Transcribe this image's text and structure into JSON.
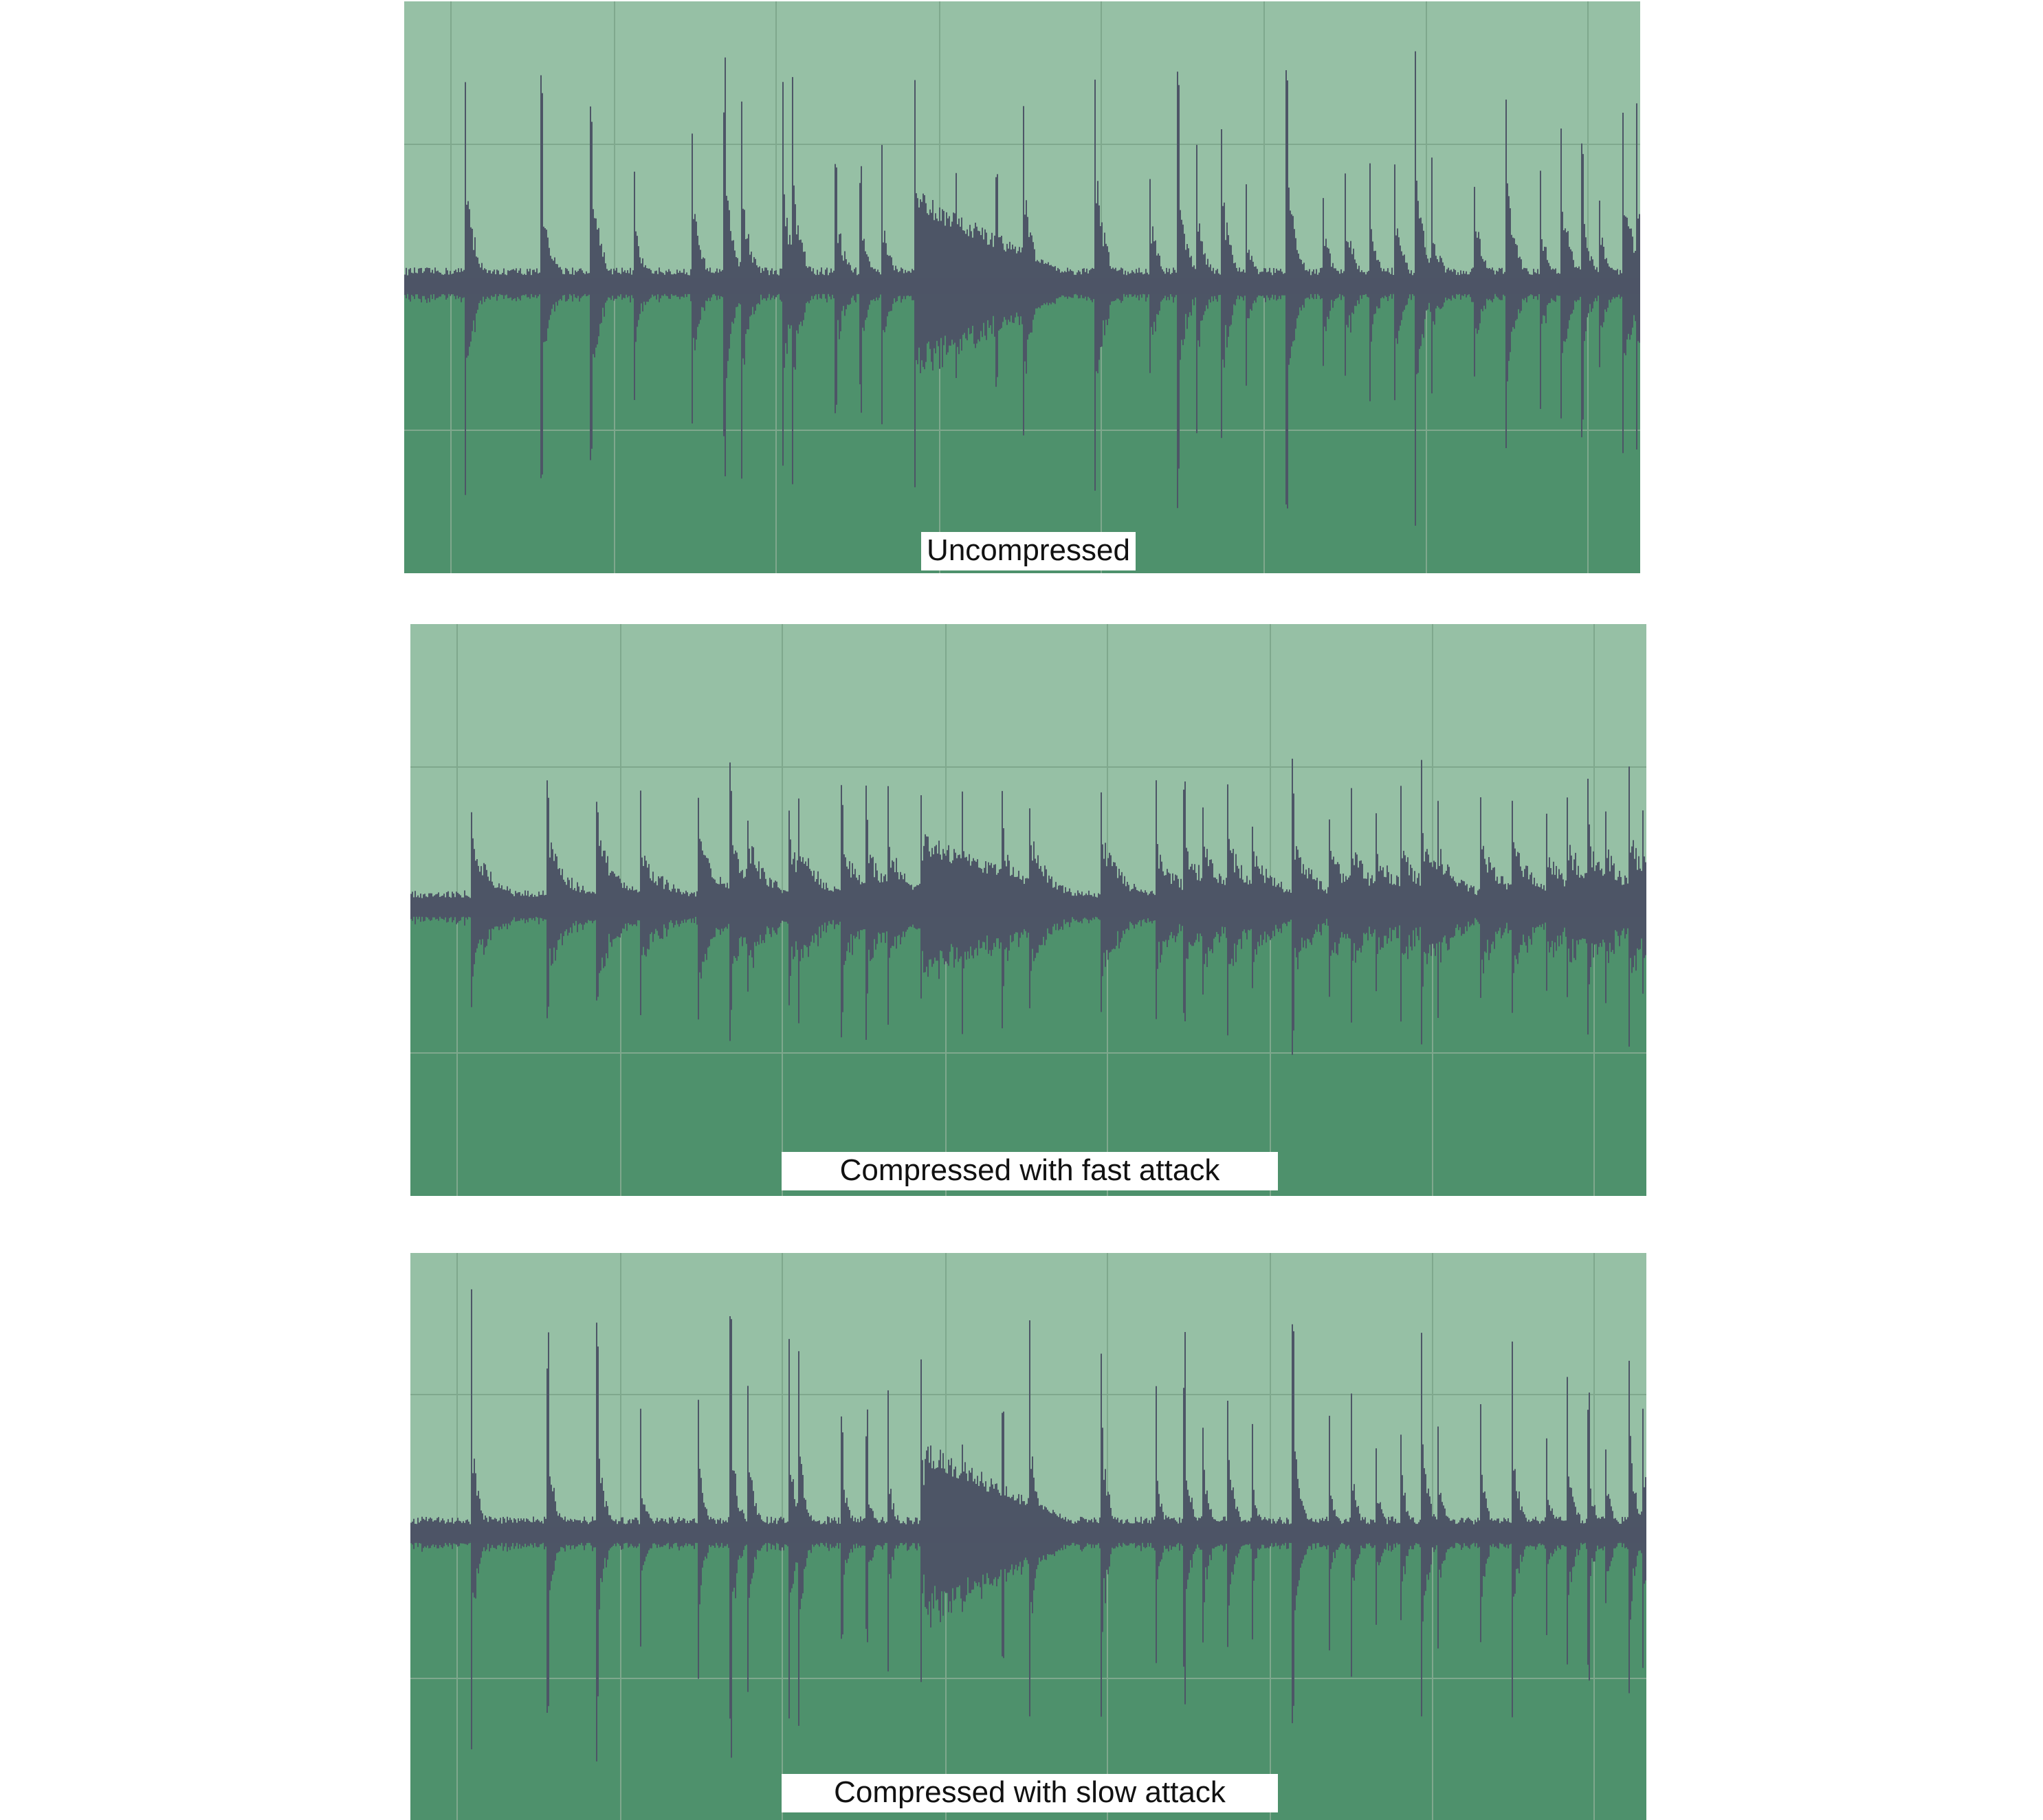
{
  "colors": {
    "upper_fill": "#96c0a5",
    "lower_fill": "#4e916c",
    "waveform": "#4d5566",
    "gridline": "#7fa88d"
  },
  "panels": [
    {
      "id": "uncompressed",
      "caption": "Uncompressed"
    },
    {
      "id": "fast-attack",
      "caption": "Compressed with fast attack"
    },
    {
      "id": "slow-attack",
      "caption": "Compressed with slow attack"
    }
  ]
}
